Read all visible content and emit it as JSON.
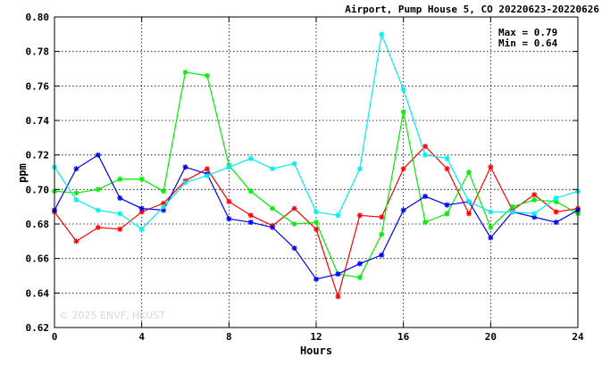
{
  "chart_data": {
    "type": "line",
    "title": "Airport, Pump House 5, CO 20220623-20220626",
    "xlabel": "Hours",
    "ylabel": "ppm",
    "xlim": [
      0,
      24
    ],
    "ylim": [
      0.62,
      0.8
    ],
    "xticks": [
      "0",
      "4",
      "8",
      "12",
      "16",
      "20",
      "24"
    ],
    "yticks": [
      "0.62",
      "0.64",
      "0.66",
      "0.68",
      "0.70",
      "0.72",
      "0.74",
      "0.76",
      "0.78",
      "0.80"
    ],
    "grid": true,
    "stats": {
      "max": "Max = 0.79",
      "min": "Min = 0.64"
    },
    "watermark": "© 2025  ENVF, HKUST",
    "x": [
      0,
      1,
      2,
      3,
      4,
      5,
      6,
      7,
      8,
      9,
      10,
      11,
      12,
      13,
      14,
      15,
      16,
      17,
      18,
      19,
      20,
      21,
      22,
      23,
      24
    ],
    "series": [
      {
        "color": "#ff0000",
        "values": [
          0.687,
          0.67,
          0.678,
          0.677,
          0.687,
          0.692,
          0.705,
          0.712,
          0.693,
          0.685,
          0.679,
          0.689,
          0.677,
          0.638,
          0.685,
          0.684,
          0.712,
          0.725,
          0.712,
          0.686,
          0.713,
          0.688,
          0.697,
          0.687,
          0.689
        ]
      },
      {
        "color": "#00ee00",
        "values": [
          0.699,
          0.698,
          0.7,
          0.706,
          0.706,
          0.699,
          0.768,
          0.766,
          0.714,
          0.699,
          0.689,
          0.68,
          0.681,
          0.651,
          0.649,
          0.674,
          0.745,
          0.681,
          0.686,
          0.71,
          0.678,
          0.69,
          0.694,
          0.693,
          0.686
        ]
      },
      {
        "color": "#0000ff",
        "values": [
          0.688,
          0.712,
          0.72,
          0.695,
          0.689,
          0.688,
          0.713,
          0.709,
          0.683,
          0.681,
          0.678,
          0.666,
          0.648,
          0.651,
          0.657,
          0.662,
          0.688,
          0.696,
          0.691,
          0.693,
          0.672,
          0.687,
          0.684,
          0.681,
          0.688
        ]
      },
      {
        "color": "#00eeee",
        "values": [
          0.713,
          0.694,
          0.688,
          0.686,
          0.677,
          0.69,
          0.704,
          0.708,
          0.713,
          0.718,
          0.712,
          0.715,
          0.687,
          0.685,
          0.712,
          0.79,
          0.758,
          0.72,
          0.718,
          0.693,
          0.687,
          0.687,
          0.686,
          0.695,
          0.699
        ]
      }
    ]
  }
}
